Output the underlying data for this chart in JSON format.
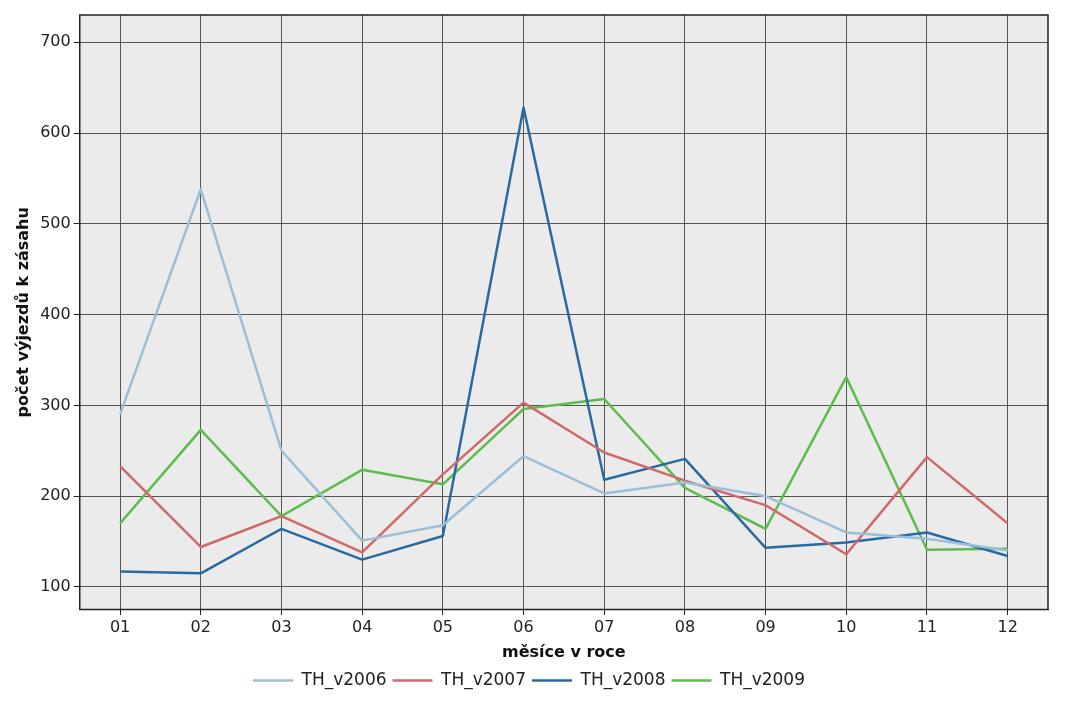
{
  "chart_data": {
    "type": "line",
    "xlabel": "měsíce v roce",
    "ylabel": "počet výjezdů k zásahu",
    "categories": [
      "01",
      "02",
      "03",
      "04",
      "05",
      "06",
      "07",
      "08",
      "09",
      "10",
      "11",
      "12"
    ],
    "series": [
      {
        "name": "TH_v2006",
        "color": "#9bbfd8",
        "values": [
          290,
          538,
          250,
          151,
          168,
          244,
          203,
          215,
          200,
          160,
          153,
          140
        ]
      },
      {
        "name": "TH_v2007",
        "color": "#d06a6a",
        "values": [
          233,
          144,
          178,
          138,
          224,
          303,
          248,
          217,
          190,
          136,
          243,
          170
        ]
      },
      {
        "name": "TH_v2008",
        "color": "#2a6aa3",
        "values": [
          117,
          115,
          164,
          130,
          156,
          628,
          218,
          241,
          143,
          149,
          160,
          134
        ]
      },
      {
        "name": "TH_v2009",
        "color": "#5cbd4c",
        "values": [
          170,
          273,
          178,
          229,
          213,
          296,
          307,
          209,
          164,
          331,
          141,
          142
        ]
      }
    ],
    "ylim": [
      75,
      730
    ],
    "yticks": [
      100,
      200,
      300,
      400,
      500,
      600,
      700
    ],
    "grid": true,
    "legend": "bottom",
    "marker": "none",
    "line_style": "solid"
  }
}
